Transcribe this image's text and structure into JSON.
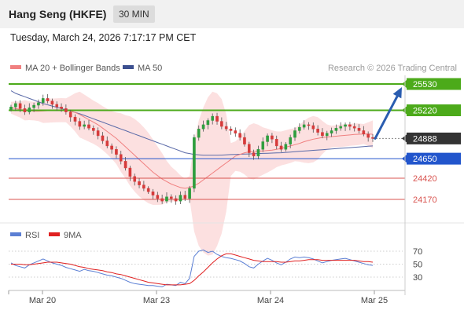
{
  "header": {
    "title": "Hang Seng (HKFE)",
    "interval": "30 MIN",
    "datetime": "Tuesday, March 24, 2026 7:17:17 PM CET"
  },
  "legend": {
    "ma20": "MA 20 + Bollinger Bands",
    "ma50": "MA 50",
    "credit": "Research © 2026 Trading Central"
  },
  "colors": {
    "bull": "#2e9e3e",
    "bear": "#d63a3a",
    "ma20": "#f08080",
    "ma50": "#5a6aa8",
    "resistance": "#4caa1a",
    "pivot": "#2255cc",
    "support": "#d9534f",
    "current": "#333333",
    "rsi": "#5b7fd4",
    "rsi_ma": "#e02020",
    "arrow": "#2a5db0"
  },
  "chart_data": [
    {
      "type": "candlestick",
      "title": "",
      "x_ticks": [
        "Mar 20",
        "Mar 23",
        "Mar 24",
        "Mar 25"
      ],
      "ylim": [
        24000,
        25600
      ],
      "levels": [
        {
          "value": 25530,
          "label": "25530",
          "kind": "resistance"
        },
        {
          "value": 25220,
          "label": "25220",
          "kind": "resistance"
        },
        {
          "value": 24888,
          "label": "24888",
          "kind": "current"
        },
        {
          "value": 24650,
          "label": "24650",
          "kind": "pivot"
        },
        {
          "value": 24420,
          "label": "24420",
          "kind": "support"
        },
        {
          "value": 24170,
          "label": "24170",
          "kind": "support"
        }
      ],
      "close": [
        25260,
        25300,
        25240,
        25200,
        25250,
        25280,
        25310,
        25360,
        25330,
        25290,
        25260,
        25240,
        25200,
        25140,
        25090,
        25030,
        25050,
        25010,
        24980,
        24920,
        24860,
        24800,
        24760,
        24700,
        24620,
        24540,
        24440,
        24380,
        24340,
        24300,
        24260,
        24220,
        24180,
        24150,
        24200,
        24180,
        24150,
        24220,
        24180,
        24300,
        24900,
        25000,
        25050,
        25100,
        25150,
        25090,
        25030,
        25000,
        24980,
        24950,
        24900,
        24820,
        24720,
        24680,
        24760,
        24850,
        24920,
        24880,
        24800,
        24760,
        24820,
        24900,
        24980,
        25020,
        25050,
        25040,
        25000,
        24960,
        24920,
        24950,
        24980,
        25010,
        25030,
        25050,
        25030,
        25010,
        24980,
        24940,
        24900,
        24888
      ],
      "series": [
        {
          "name": "MA 20",
          "values": [
            25250,
            25240,
            25230,
            25220,
            25215,
            25210,
            25210,
            25212,
            25215,
            25218,
            25220,
            25222,
            25220,
            25210,
            25195,
            25170,
            25140,
            25110,
            25080,
            25050,
            25010,
            24970,
            24930,
            24890,
            24840,
            24790,
            24740,
            24690,
            24640,
            24590,
            24540,
            24490,
            24450,
            24410,
            24380,
            24350,
            24330,
            24310,
            24300,
            24310,
            24330,
            24360,
            24400,
            24440,
            24480,
            24520,
            24560,
            24600,
            24640,
            24680,
            24700,
            24720,
            24730,
            24735,
            24740,
            24740,
            24745,
            24750,
            24760,
            24770,
            24785,
            24800,
            24815,
            24830,
            24850,
            24865,
            24880,
            24890,
            24900,
            24905,
            24910,
            24915,
            24920,
            24925,
            24930,
            24935,
            24938,
            24940,
            24940,
            24938
          ]
        },
        {
          "name": "MA 50",
          "values": [
            25450,
            25420,
            25400,
            25380,
            25360,
            25340,
            25320,
            25300,
            25285,
            25270,
            25255,
            25240,
            25225,
            25210,
            25195,
            25180,
            25160,
            25140,
            25120,
            25100,
            25080,
            25060,
            25040,
            25020,
            25000,
            24980,
            24960,
            24940,
            24920,
            24900,
            24880,
            24860,
            24840,
            24820,
            24800,
            24780,
            24760,
            24740,
            24720,
            24710,
            24700,
            24695,
            24690,
            24690,
            24690,
            24690,
            24692,
            24695,
            24698,
            24700,
            24702,
            24704,
            24706,
            24708,
            24710,
            24712,
            24714,
            24716,
            24718,
            24720,
            24724,
            24728,
            24732,
            24736,
            24740,
            24744,
            24748,
            24752,
            24756,
            24760,
            24764,
            24768,
            24772,
            24776,
            24780,
            24784,
            24788,
            24792,
            24796,
            24800
          ]
        }
      ]
    },
    {
      "type": "line",
      "title": "",
      "legend": [
        "RSI",
        "9MA"
      ],
      "y_ticks": [
        30,
        50,
        70
      ],
      "ylim": [
        10,
        85
      ],
      "series": [
        {
          "name": "RSI",
          "values": [
            52,
            48,
            46,
            44,
            49,
            52,
            55,
            58,
            55,
            52,
            50,
            48,
            45,
            43,
            41,
            39,
            42,
            40,
            39,
            37,
            35,
            33,
            32,
            30,
            28,
            25,
            22,
            20,
            19,
            18,
            17,
            17,
            16,
            15,
            19,
            18,
            17,
            22,
            20,
            28,
            62,
            70,
            72,
            68,
            70,
            65,
            62,
            60,
            59,
            57,
            55,
            51,
            46,
            44,
            50,
            55,
            59,
            56,
            52,
            49,
            53,
            58,
            61,
            60,
            61,
            60,
            58,
            55,
            52,
            54,
            56,
            57,
            58,
            59,
            57,
            55,
            53,
            51,
            49,
            48
          ]
        },
        {
          "name": "9MA",
          "values": [
            50,
            50,
            50,
            49,
            49,
            50,
            51,
            52,
            53,
            53,
            53,
            52,
            51,
            50,
            48,
            46,
            45,
            43,
            42,
            41,
            40,
            38,
            37,
            35,
            34,
            32,
            30,
            28,
            26,
            24,
            22,
            21,
            20,
            19,
            18,
            18,
            18,
            18,
            19,
            20,
            25,
            32,
            38,
            45,
            52,
            58,
            63,
            66,
            66,
            64,
            62,
            60,
            58,
            56,
            55,
            54,
            54,
            54,
            54,
            53,
            53,
            54,
            55,
            55,
            56,
            57,
            57,
            57,
            56,
            56,
            56,
            56,
            56,
            56,
            56,
            56,
            55,
            54,
            54,
            53
          ]
        }
      ]
    }
  ]
}
